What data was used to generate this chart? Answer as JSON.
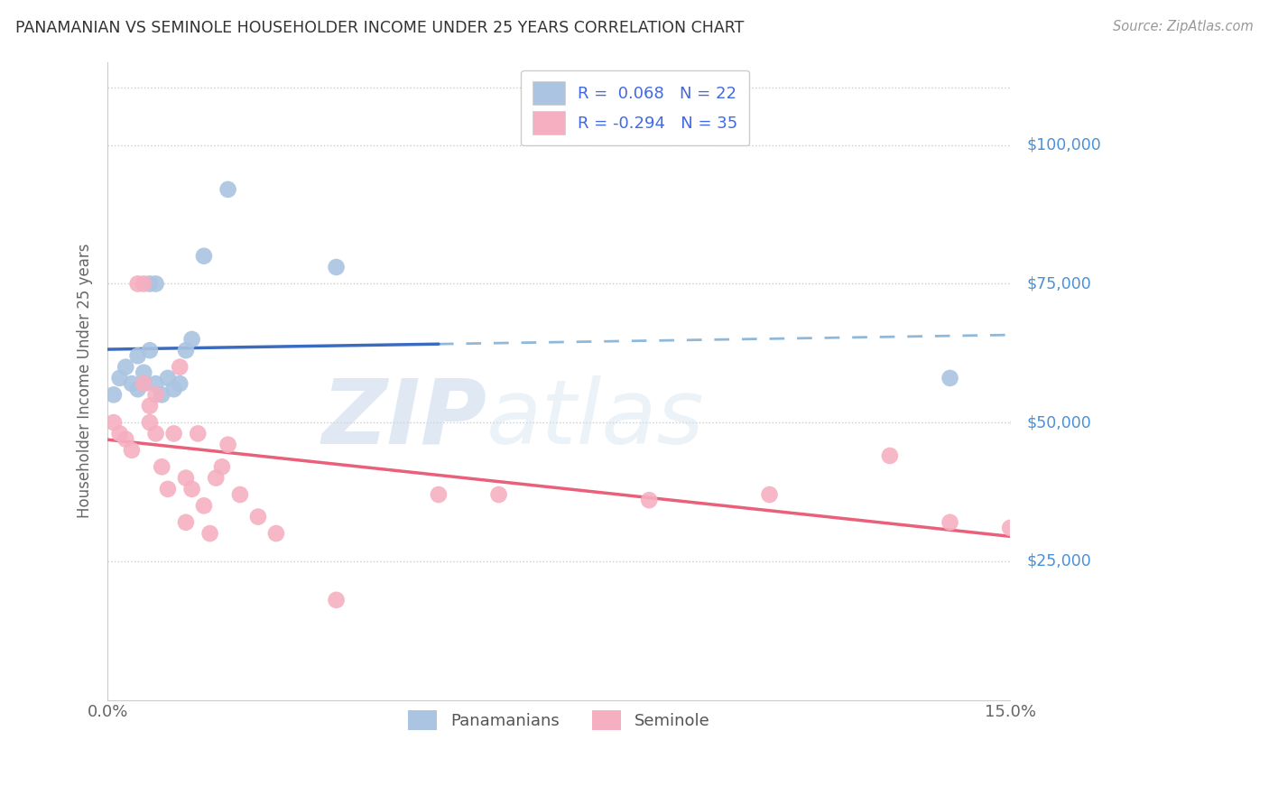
{
  "title": "PANAMANIAN VS SEMINOLE HOUSEHOLDER INCOME UNDER 25 YEARS CORRELATION CHART",
  "source": "Source: ZipAtlas.com",
  "ylabel": "Householder Income Under 25 years",
  "xlim": [
    0.0,
    0.15
  ],
  "ylim": [
    0,
    115000
  ],
  "ytick_labels_right": [
    "$25,000",
    "$50,000",
    "$75,000",
    "$100,000"
  ],
  "ytick_values_right": [
    25000,
    50000,
    75000,
    100000
  ],
  "watermark_zip": "ZIP",
  "watermark_atlas": "atlas",
  "pan_color": "#aac4e2",
  "sem_color": "#f5afc0",
  "pan_line_color": "#3b6bbf",
  "sem_line_color": "#e8607a",
  "pan_dash_color": "#90b8d8",
  "background_color": "#ffffff",
  "grid_color": "#cccccc",
  "right_label_color": "#4a90d9",
  "pan_x": [
    0.001,
    0.002,
    0.003,
    0.004,
    0.005,
    0.005,
    0.006,
    0.006,
    0.007,
    0.007,
    0.008,
    0.008,
    0.009,
    0.01,
    0.011,
    0.012,
    0.013,
    0.014,
    0.016,
    0.02,
    0.038,
    0.14
  ],
  "pan_y": [
    55000,
    58000,
    60000,
    57000,
    56000,
    62000,
    59000,
    57000,
    63000,
    75000,
    57000,
    75000,
    55000,
    58000,
    56000,
    57000,
    63000,
    65000,
    80000,
    92000,
    78000,
    58000
  ],
  "sem_x": [
    0.001,
    0.002,
    0.003,
    0.004,
    0.005,
    0.006,
    0.006,
    0.007,
    0.007,
    0.008,
    0.008,
    0.009,
    0.01,
    0.011,
    0.012,
    0.013,
    0.013,
    0.014,
    0.015,
    0.016,
    0.017,
    0.018,
    0.019,
    0.02,
    0.022,
    0.025,
    0.028,
    0.038,
    0.055,
    0.065,
    0.09,
    0.11,
    0.13,
    0.14,
    0.15
  ],
  "sem_y": [
    50000,
    48000,
    47000,
    45000,
    75000,
    75000,
    57000,
    53000,
    50000,
    48000,
    55000,
    42000,
    38000,
    48000,
    60000,
    40000,
    32000,
    38000,
    48000,
    35000,
    30000,
    40000,
    42000,
    46000,
    37000,
    33000,
    30000,
    18000,
    37000,
    37000,
    36000,
    37000,
    44000,
    32000,
    31000
  ]
}
